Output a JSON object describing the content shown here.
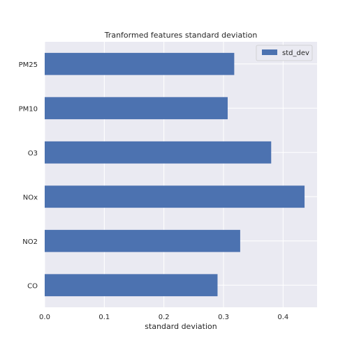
{
  "chart_data": {
    "type": "bar",
    "orientation": "horizontal",
    "title": "Tranformed features standard deviation",
    "xlabel": "standard deviation",
    "ylabel": "",
    "categories": [
      "CO",
      "NO2",
      "NOx",
      "O3",
      "PM10",
      "PM25"
    ],
    "series": [
      {
        "name": "std_dev",
        "values": [
          0.29,
          0.328,
          0.436,
          0.38,
          0.307,
          0.318
        ]
      }
    ],
    "xlim": [
      0,
      0.457
    ],
    "xticks": [
      "0.0",
      "0.1",
      "0.2",
      "0.3",
      "0.4"
    ],
    "grid": true,
    "legend_position": "top-right",
    "colors": {
      "bar": "#4c72b0",
      "background": "#eaeaf2",
      "grid": "#ffffff"
    }
  }
}
